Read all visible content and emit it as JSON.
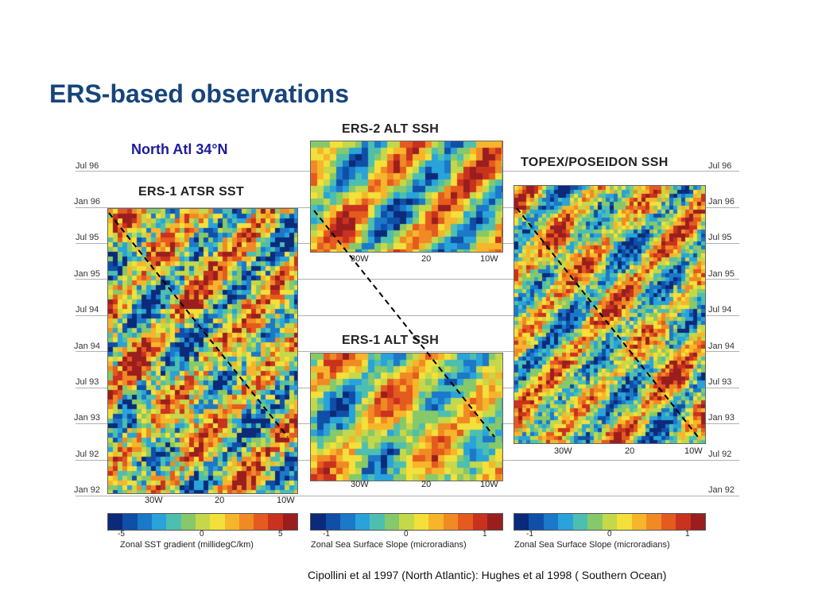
{
  "slide": {
    "title": "ERS-based observations",
    "subtitle": "North Atl 34°N",
    "citation": "Cipollini et al 1997 (North Atlantic): Hughes et al 1998 ( Southern Ocean)"
  },
  "time_axis": {
    "left_labels": [
      "Jul 96",
      "Jan 96",
      "Jul 95",
      "Jan 95",
      "Jul 94",
      "Jan 94",
      "Jul 93",
      "Jan 93",
      "Jul 92",
      "Jan 92"
    ],
    "right_labels": [
      "Jul 96",
      "Jan 96",
      "Jul 95",
      "Jan 95",
      "Jul 94",
      "Jan 94",
      "Jul 93",
      "Jan 93",
      "Jul 92",
      "Jan 92"
    ]
  },
  "panels": {
    "atsr": {
      "title": "ERS-1 ATSR SST",
      "x_ticks": [
        "30W",
        "20",
        "10W"
      ],
      "colorbar_ticks": [
        "-5",
        "0",
        "5"
      ],
      "colorbar_label": "Zonal SST gradient (millidegC/km)"
    },
    "ers2": {
      "title": "ERS-2 ALT SSH",
      "x_ticks": [
        "30W",
        "20",
        "10W"
      ]
    },
    "ers1": {
      "title": "ERS-1 ALT SSH",
      "x_ticks": [
        "30W",
        "20",
        "10W"
      ],
      "colorbar_ticks": [
        "-1",
        "0",
        "1"
      ],
      "colorbar_label": "Zonal Sea Surface Slope (microradians)"
    },
    "topex": {
      "title": "TOPEX/POSEIDON SSH",
      "x_ticks": [
        "30W",
        "20",
        "10W"
      ],
      "colorbar_ticks": [
        "-1",
        "0",
        "1"
      ],
      "colorbar_label": "Zonal Sea Surface Slope (microradians)"
    }
  },
  "colormap": [
    "#0b2a7a",
    "#0f4fa8",
    "#1c78c8",
    "#29a3d9",
    "#4dbfb0",
    "#86c96a",
    "#c4d84a",
    "#f3e03a",
    "#f7b52c",
    "#f08a24",
    "#e55a1f",
    "#c9321e",
    "#9a1e1e"
  ]
}
